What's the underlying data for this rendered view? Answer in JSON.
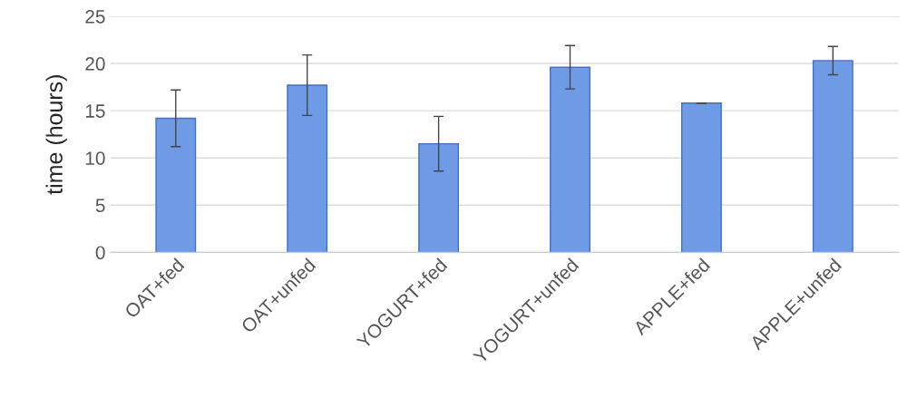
{
  "chart_data": {
    "type": "bar",
    "ylabel": "time (hours)",
    "categories": [
      "OAT+fed",
      "OAT+unfed",
      "YOGURT+fed",
      "YOGURT+unfed",
      "APPLE+fed",
      "APPLE+unfed"
    ],
    "values": [
      14.2,
      17.7,
      11.5,
      19.6,
      15.8,
      20.3
    ],
    "errors": [
      3,
      3.2,
      2.9,
      2.3,
      0,
      1.5
    ],
    "color": "#6f9be6",
    "ylim": [
      0,
      25
    ],
    "yticks": [
      0,
      5,
      10,
      15,
      20,
      25
    ],
    "grid": "y"
  }
}
